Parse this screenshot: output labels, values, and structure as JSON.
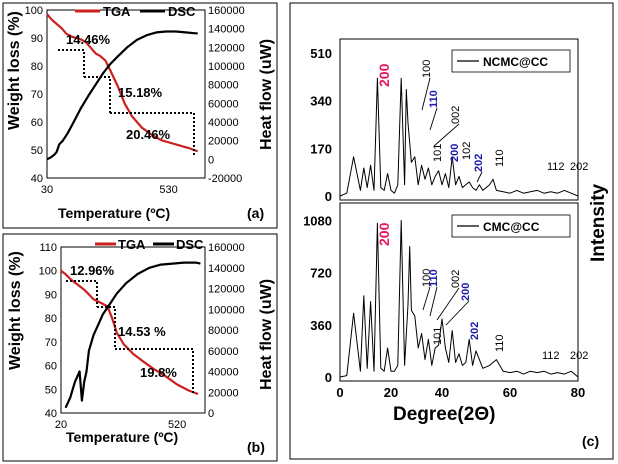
{
  "chart_data": [
    {
      "panel": "(a)",
      "type": "line",
      "xlabel": "Temperature (ºC)",
      "ylabel": "Weight loss (%)",
      "y2label": "Heat flow (uW)",
      "xticks": [
        "30",
        "530"
      ],
      "xlim": [
        30,
        680
      ],
      "ylim": [
        40,
        100
      ],
      "yticks": [
        "40",
        "50",
        "60",
        "70",
        "80",
        "90",
        "100"
      ],
      "y2lim": [
        -20000,
        160000
      ],
      "y2ticks": [
        "-20000",
        "0",
        "20000",
        "40000",
        "60000",
        "80000",
        "100000",
        "120000",
        "140000",
        "160000"
      ],
      "legend": [
        "TGA",
        "DSC"
      ],
      "colors": {
        "TGA": "#cc1f1f",
        "DSC": "#000000"
      },
      "annotations": [
        "14.46%",
        "15.18%",
        "20.46%"
      ],
      "series": [
        {
          "name": "TGA",
          "axis": "left",
          "x": [
            30,
            50,
            70,
            90,
            110,
            130,
            150,
            170,
            190,
            210,
            230,
            250,
            270,
            290,
            320,
            350,
            380,
            420,
            460,
            500,
            540,
            580,
            620,
            650
          ],
          "y": [
            98.5,
            96.5,
            95.0,
            93.5,
            91.5,
            90.5,
            90.0,
            89.5,
            88.5,
            86.5,
            84.5,
            83.5,
            82.0,
            78.5,
            73.0,
            66.5,
            62.0,
            58.0,
            55.5,
            53.5,
            52.5,
            51.5,
            50.5,
            49.5
          ]
        },
        {
          "name": "DSC",
          "axis": "right",
          "x": [
            30,
            45,
            60,
            70,
            80,
            95,
            115,
            140,
            170,
            200,
            230,
            260,
            290,
            320,
            360,
            400,
            440,
            480,
            520,
            560,
            600,
            640,
            650
          ],
          "y": [
            0,
            2000,
            5000,
            8000,
            16000,
            20000,
            28000,
            40000,
            55000,
            68000,
            80000,
            92000,
            102000,
            110000,
            120000,
            128000,
            133000,
            136000,
            137000,
            137000,
            136000,
            135000,
            135000
          ]
        }
      ]
    },
    {
      "panel": "(b)",
      "type": "line",
      "xlabel": "Temperature (ºC)",
      "ylabel": "Weight loss (%)",
      "y2label": "Heat flow (uW)",
      "xticks": [
        "20",
        "520"
      ],
      "xlim": [
        20,
        640
      ],
      "ylim": [
        40,
        110
      ],
      "yticks": [
        "40",
        "50",
        "60",
        "70",
        "80",
        "90",
        "100",
        "110"
      ],
      "y2lim": [
        0,
        160000
      ],
      "y2ticks": [
        "0",
        "20000",
        "40000",
        "60000",
        "80000",
        "100000",
        "120000",
        "140000",
        "160000"
      ],
      "legend": [
        "TGA",
        "DSC"
      ],
      "colors": {
        "TGA": "#cc1f1f",
        "DSC": "#000000"
      },
      "annotations": [
        "12.96%",
        "14.53 %",
        "19.8%"
      ],
      "series": [
        {
          "name": "TGA",
          "axis": "left",
          "x": [
            20,
            40,
            60,
            80,
            100,
            120,
            140,
            160,
            180,
            200,
            220,
            240,
            260,
            290,
            330,
            370,
            420,
            470,
            520,
            570,
            610
          ],
          "y": [
            100,
            98.5,
            96.5,
            95.0,
            93.5,
            92.0,
            90.0,
            88.0,
            87.0,
            86.0,
            85.0,
            80.0,
            74.0,
            69.0,
            65.0,
            62.0,
            58.5,
            55.5,
            52.0,
            49.5,
            48.0
          ]
        },
        {
          "name": "DSC",
          "axis": "right",
          "x": [
            40,
            60,
            80,
            100,
            110,
            120,
            130,
            140,
            160,
            180,
            200,
            230,
            260,
            300,
            350,
            400,
            450,
            500,
            550,
            600,
            620
          ],
          "y": [
            5000,
            15000,
            30000,
            40000,
            12000,
            30000,
            40000,
            60000,
            75000,
            85000,
            95000,
            105000,
            115000,
            125000,
            134000,
            140000,
            143000,
            144000,
            145000,
            145000,
            144000
          ]
        }
      ]
    },
    {
      "panel": "(c)",
      "type": "line",
      "xlabel": "Degree(2Θ)",
      "ylabel": "Intensity",
      "xlim": [
        10,
        80
      ],
      "xticks": [
        "0",
        "20",
        "40",
        "60",
        "80"
      ],
      "top_yticks": [
        "0",
        "170",
        "340",
        "510"
      ],
      "bottom_yticks": [
        "0",
        "360",
        "720",
        "1080"
      ],
      "series": [
        {
          "name": "NCMC@CC",
          "legend": "NCMC@CC",
          "ylim": [
            0,
            560
          ],
          "x": [
            10,
            12,
            14,
            16,
            17,
            18,
            19,
            20,
            21,
            22,
            23,
            24,
            25,
            26,
            27,
            28,
            29,
            29.5,
            30,
            31,
            32,
            33,
            34,
            35,
            36,
            37,
            38,
            39,
            40,
            41,
            42,
            43,
            44,
            45,
            46,
            47,
            48,
            49,
            50,
            51,
            52,
            53,
            54,
            55,
            56,
            58,
            60,
            62,
            64,
            66,
            68,
            70,
            72,
            74,
            76,
            78,
            80
          ],
          "y": [
            0,
            10,
            140,
            20,
            100,
            30,
            110,
            20,
            420,
            30,
            20,
            80,
            20,
            10,
            40,
            420,
            40,
            380,
            260,
            120,
            140,
            40,
            110,
            60,
            100,
            40,
            70,
            90,
            40,
            80,
            30,
            140,
            40,
            70,
            30,
            40,
            50,
            30,
            20,
            40,
            20,
            30,
            40,
            60,
            20,
            15,
            10,
            20,
            10,
            15,
            20,
            10,
            15,
            10,
            20,
            10,
            0
          ],
          "peak_labels": [
            "200",
            "100",
            "110",
            "002",
            "101",
            "200",
            "102",
            "202",
            "110",
            "112",
            "202"
          ],
          "peak_label_colors": [
            "#e8175d",
            "#000000",
            "#1a1aaa",
            "#000000",
            "#000000",
            "#1a1aaa",
            "#000000",
            "#1a1aaa",
            "#000000",
            "#000000",
            "#000000"
          ]
        },
        {
          "name": "CMC@CC",
          "legend": "CMC@CC",
          "ylim": [
            0,
            1200
          ],
          "x": [
            10,
            12,
            14,
            16,
            17,
            18,
            19,
            20,
            21,
            22,
            23,
            24,
            25,
            26,
            27,
            28,
            29,
            30,
            30.5,
            31,
            32,
            33,
            34,
            35,
            36,
            37,
            38,
            39,
            40,
            41,
            42,
            43,
            44,
            45,
            46,
            47,
            48,
            49,
            50,
            52,
            54,
            56,
            58,
            60,
            62,
            64,
            66,
            68,
            70,
            72,
            74,
            76,
            78,
            80
          ],
          "y": [
            0,
            10,
            440,
            40,
            560,
            60,
            520,
            40,
            1060,
            60,
            40,
            200,
            40,
            40,
            80,
            1080,
            80,
            500,
            900,
            460,
            420,
            200,
            300,
            120,
            260,
            80,
            200,
            220,
            400,
            200,
            100,
            320,
            100,
            160,
            80,
            100,
            260,
            80,
            180,
            60,
            80,
            120,
            40,
            30,
            40,
            20,
            40,
            30,
            40,
            20,
            30,
            20,
            40,
            0
          ],
          "peak_labels": [
            "200",
            "100",
            "110",
            "002",
            "101",
            "200",
            "202",
            "110",
            "112",
            "202"
          ],
          "peak_label_colors": [
            "#e8175d",
            "#000000",
            "#1a1aaa",
            "#000000",
            "#000000",
            "#1a1aaa",
            "#1a1aaa",
            "#000000",
            "#000000",
            "#000000"
          ]
        }
      ]
    }
  ]
}
